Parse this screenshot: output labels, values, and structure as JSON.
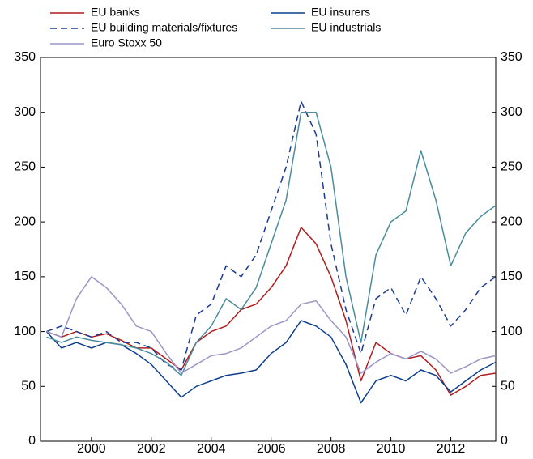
{
  "chart_data": {
    "type": "line",
    "x": [
      1998.5,
      1999,
      1999.5,
      2000,
      2000.5,
      2001,
      2001.5,
      2002,
      2002.5,
      2003,
      2003.5,
      2004,
      2004.5,
      2005,
      2005.5,
      2006,
      2006.5,
      2007,
      2007.5,
      2008,
      2008.5,
      2009,
      2009.5,
      2010,
      2010.5,
      2011,
      2011.5,
      2012,
      2012.5,
      2013,
      2013.5
    ],
    "series": [
      {
        "name": "EU banks",
        "color": "#b01c1c",
        "values": [
          100,
          95,
          100,
          95,
          98,
          92,
          85,
          85,
          75,
          65,
          90,
          100,
          105,
          120,
          125,
          140,
          160,
          195,
          180,
          150,
          110,
          55,
          90,
          80,
          75,
          78,
          65,
          42,
          50,
          60,
          62
        ]
      },
      {
        "name": "EU insurers",
        "color": "#0b3d8c",
        "values": [
          100,
          85,
          90,
          85,
          90,
          88,
          80,
          70,
          55,
          40,
          50,
          55,
          60,
          62,
          65,
          80,
          90,
          110,
          105,
          95,
          70,
          35,
          55,
          60,
          55,
          65,
          60,
          45,
          55,
          65,
          72
        ]
      },
      {
        "name": "EU building materials/fixtures",
        "color": "#1a3a94",
        "dashed": true,
        "values": [
          100,
          105,
          100,
          95,
          100,
          90,
          90,
          85,
          70,
          65,
          115,
          125,
          160,
          150,
          170,
          210,
          250,
          310,
          280,
          180,
          120,
          80,
          130,
          140,
          115,
          150,
          130,
          105,
          120,
          140,
          150
        ]
      },
      {
        "name": "EU industrials",
        "color": "#4a8c9c",
        "values": [
          95,
          90,
          95,
          92,
          90,
          88,
          85,
          80,
          72,
          60,
          90,
          105,
          130,
          120,
          140,
          180,
          220,
          300,
          300,
          250,
          150,
          90,
          170,
          200,
          210,
          265,
          220,
          160,
          190,
          205,
          215
        ]
      },
      {
        "name": "Euro Stoxx 50",
        "color": "#9a96c8",
        "values": [
          100,
          95,
          130,
          150,
          140,
          125,
          105,
          100,
          80,
          62,
          70,
          78,
          80,
          85,
          95,
          105,
          110,
          125,
          128,
          110,
          95,
          62,
          72,
          80,
          75,
          82,
          75,
          62,
          68,
          75,
          78
        ]
      }
    ],
    "xlim": [
      1998.3,
      2013.5
    ],
    "xticks": [
      2000,
      2002,
      2004,
      2006,
      2008,
      2010,
      2012
    ],
    "ylim": [
      0,
      350
    ],
    "yticks": [
      0,
      50,
      100,
      150,
      200,
      250,
      300,
      350
    ],
    "y2lim": [
      0,
      350
    ],
    "y2ticks": [
      0,
      50,
      100,
      150,
      200,
      250,
      300,
      350
    ]
  }
}
